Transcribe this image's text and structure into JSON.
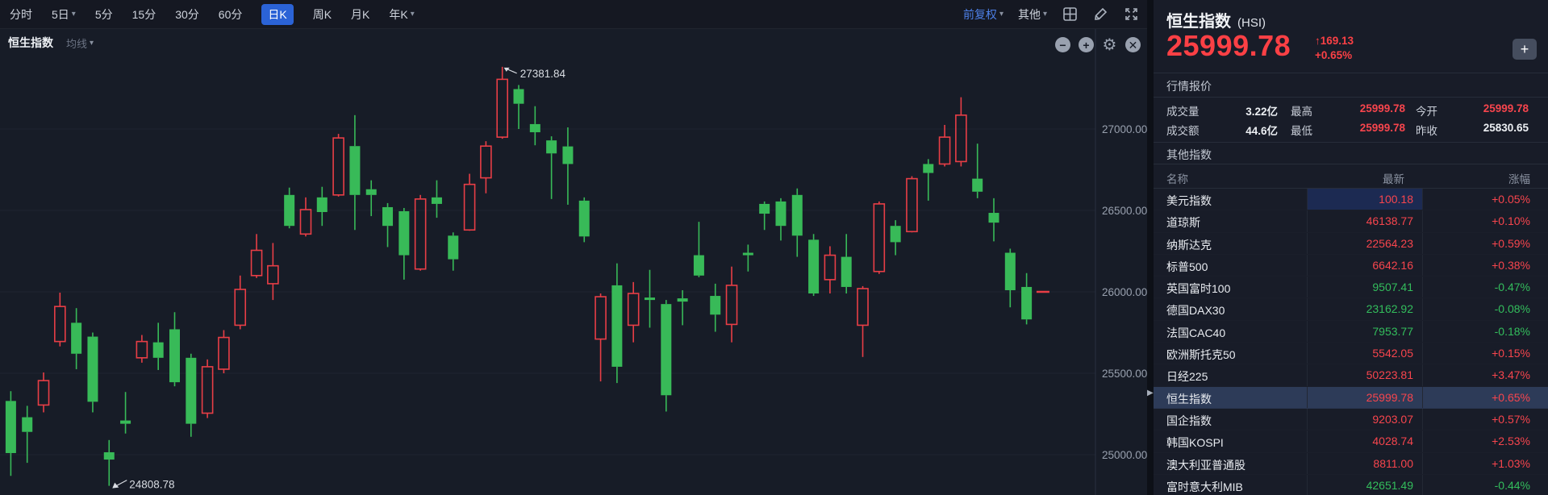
{
  "toolbar": {
    "items": [
      {
        "label": "分时"
      },
      {
        "label": "5日",
        "caret": true
      },
      {
        "label": "5分"
      },
      {
        "label": "15分"
      },
      {
        "label": "30分"
      },
      {
        "label": "60分"
      },
      {
        "label": "日K",
        "selected": true
      },
      {
        "label": "周K"
      },
      {
        "label": "月K"
      },
      {
        "label": "年K",
        "caret": true
      }
    ],
    "adjust_label": "前复权",
    "other_label": "其他",
    "icons": [
      "layout-grid-icon",
      "brush-icon",
      "expand-icon"
    ]
  },
  "chart": {
    "symbol_label": "恒生指数",
    "ma_label": "均线",
    "controls": {
      "zoom_out": "−",
      "zoom_in": "+",
      "settings": "⚙",
      "close": "✕"
    }
  },
  "chart_data": {
    "type": "candlestick",
    "title": "恒生指数 (HSI) 日K",
    "up_means": "red-hollow (rise)",
    "down_means": "green-solid (fall)",
    "y_axis": {
      "ticks": [
        {
          "v": 27000,
          "label": "27000.00"
        },
        {
          "v": 26500,
          "label": "26500.00"
        },
        {
          "v": 26000,
          "label": "26000.00"
        },
        {
          "v": 25500,
          "label": "25500.00"
        },
        {
          "v": 25000,
          "label": "25000.00"
        }
      ]
    },
    "annotations": {
      "high_label": "27381.84",
      "high_value": 27381.84,
      "high_index": 30,
      "low_label": "24808.78",
      "low_value": 24808.78,
      "low_index": 6
    },
    "last_price": 25999.78,
    "colors": {
      "up": "#e83e46",
      "down": "#38ba58"
    },
    "candles": [
      [
        25330,
        25390,
        24870,
        25010
      ],
      [
        25230,
        25300,
        24950,
        25140
      ],
      [
        25305,
        25505,
        25260,
        25455
      ],
      [
        25695,
        25995,
        25665,
        25910
      ],
      [
        25810,
        25900,
        25525,
        25620
      ],
      [
        25725,
        25750,
        25260,
        25325
      ],
      [
        25015,
        25090,
        24808.78,
        24970
      ],
      [
        25210,
        25385,
        25130,
        25190
      ],
      [
        25595,
        25735,
        25565,
        25695
      ],
      [
        25690,
        25810,
        25520,
        25595
      ],
      [
        25770,
        25875,
        25420,
        25445
      ],
      [
        25595,
        25620,
        25110,
        25190
      ],
      [
        25255,
        25585,
        25225,
        25540
      ],
      [
        25525,
        25765,
        25500,
        25720
      ],
      [
        25795,
        26100,
        25770,
        26015
      ],
      [
        26100,
        26355,
        26085,
        26255
      ],
      [
        26050,
        26300,
        25950,
        26160
      ],
      [
        26595,
        26640,
        26390,
        26405
      ],
      [
        26355,
        26580,
        26340,
        26505
      ],
      [
        26580,
        26645,
        26405,
        26490
      ],
      [
        26595,
        26970,
        26585,
        26945
      ],
      [
        26895,
        27085,
        26380,
        26595
      ],
      [
        26630,
        26685,
        26465,
        26595
      ],
      [
        26520,
        26545,
        26275,
        26405
      ],
      [
        26495,
        26515,
        26075,
        26225
      ],
      [
        26140,
        26595,
        26130,
        26570
      ],
      [
        26580,
        26685,
        26455,
        26540
      ],
      [
        26345,
        26365,
        26130,
        26200
      ],
      [
        26380,
        26725,
        26375,
        26660
      ],
      [
        26700,
        26925,
        26605,
        26895
      ],
      [
        26950,
        27381.84,
        26940,
        27305
      ],
      [
        27245,
        27270,
        27000,
        27155
      ],
      [
        27030,
        27140,
        26900,
        26980
      ],
      [
        26930,
        26955,
        26570,
        26850
      ],
      [
        26893,
        27010,
        26535,
        26785
      ],
      [
        26560,
        26580,
        26305,
        26340
      ],
      [
        25710,
        25990,
        25450,
        25970
      ],
      [
        26040,
        26175,
        25440,
        25540
      ],
      [
        25795,
        26060,
        25690,
        25990
      ],
      [
        25965,
        26135,
        25780,
        25950
      ],
      [
        25925,
        25950,
        25265,
        25365
      ],
      [
        25960,
        26010,
        25795,
        25940
      ],
      [
        26225,
        26430,
        26090,
        26100
      ],
      [
        25975,
        26050,
        25755,
        25860
      ],
      [
        25800,
        26155,
        25690,
        26040
      ],
      [
        26240,
        26290,
        26125,
        26225
      ],
      [
        26540,
        26555,
        26380,
        26480
      ],
      [
        26555,
        26575,
        26315,
        26405
      ],
      [
        26595,
        26635,
        26215,
        26345
      ],
      [
        26320,
        26355,
        25975,
        25990
      ],
      [
        26075,
        26280,
        25990,
        26225
      ],
      [
        26215,
        26355,
        25990,
        26030
      ],
      [
        25795,
        26035,
        25600,
        26020
      ],
      [
        26125,
        26555,
        26110,
        26540
      ],
      [
        26405,
        26440,
        26225,
        26305
      ],
      [
        26370,
        26710,
        26365,
        26695
      ],
      [
        26785,
        26815,
        26560,
        26730
      ],
      [
        26785,
        27025,
        26770,
        26950
      ],
      [
        26800,
        27195,
        26770,
        27085
      ],
      [
        26695,
        26910,
        26575,
        26615
      ],
      [
        26485,
        26575,
        26310,
        26425
      ],
      [
        26240,
        26265,
        25905,
        26010
      ],
      [
        26030,
        26115,
        25800,
        25830.65
      ],
      [
        25999.78,
        25999.78,
        25999.78,
        25999.78
      ]
    ]
  },
  "panel": {
    "name": "恒生指数",
    "code": "(HSI)",
    "price": "25999.78",
    "change_arrow": "↑",
    "change_abs": "169.13",
    "change_pct": "+0.65%",
    "add_button": "+",
    "quote_section": "行情报价",
    "quote": {
      "vol_label": "成交量",
      "vol": "3.22亿",
      "amt_label": "成交额",
      "amt": "44.6亿",
      "high_label": "最高",
      "high": "25999.78",
      "low_label": "最低",
      "low": "25999.78",
      "open_label": "今开",
      "open": "25999.78",
      "prev_label": "昨收",
      "prev": "25830.65"
    },
    "other_section": "其他指数",
    "table": {
      "headers": [
        "名称",
        "最新",
        "涨幅"
      ],
      "rows": [
        {
          "name": "美元指数",
          "last": "100.18",
          "chg": "+0.05%",
          "flash": true
        },
        {
          "name": "道琼斯",
          "last": "46138.77",
          "chg": "+0.10%"
        },
        {
          "name": "纳斯达克",
          "last": "22564.23",
          "chg": "+0.59%"
        },
        {
          "name": "标普500",
          "last": "6642.16",
          "chg": "+0.38%"
        },
        {
          "name": "英国富时100",
          "last": "9507.41",
          "chg": "-0.47%"
        },
        {
          "name": "德国DAX30",
          "last": "23162.92",
          "chg": "-0.08%"
        },
        {
          "name": "法国CAC40",
          "last": "7953.77",
          "chg": "-0.18%"
        },
        {
          "name": "欧洲斯托克50",
          "last": "5542.05",
          "chg": "+0.15%"
        },
        {
          "name": "日经225",
          "last": "50223.81",
          "chg": "+3.47%"
        },
        {
          "name": "恒生指数",
          "last": "25999.78",
          "chg": "+0.65%",
          "selected": true
        },
        {
          "name": "国企指数",
          "last": "9203.07",
          "chg": "+0.57%"
        },
        {
          "name": "韩国KOSPI",
          "last": "4028.74",
          "chg": "+2.53%"
        },
        {
          "name": "澳大利亚普通股",
          "last": "8811.00",
          "chg": "+1.03%"
        },
        {
          "name": "富时意大利MIB",
          "last": "42651.49",
          "chg": "-0.44%"
        }
      ]
    }
  }
}
